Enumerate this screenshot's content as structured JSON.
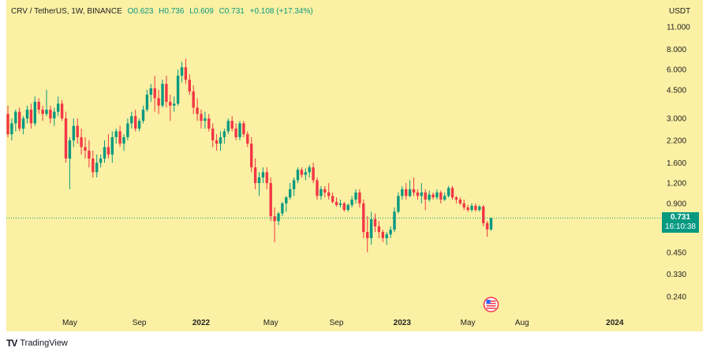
{
  "header": {
    "symbol": "CRV / TetherUS, 1W, BINANCE",
    "open": "O0.623",
    "high": "H0.736",
    "low": "L0.609",
    "close": "C0.731",
    "change": "+0.108 (+17.34%)"
  },
  "currency": "USDT",
  "last_price": {
    "value": "0.731",
    "countdown": "16:10:38"
  },
  "branding": {
    "name": "TradingView",
    "logo": "TV"
  },
  "colors": {
    "up": "#089981",
    "down": "#f23645",
    "background": "#fbf0a3"
  },
  "chart_data": {
    "type": "candlestick",
    "title": "CRV / TetherUS, 1W, BINANCE",
    "yscale": "log",
    "ylim": [
      0.2,
      13.5
    ],
    "ytick_labels": [
      "11.000",
      "8.000",
      "6.000",
      "4.500",
      "3.000",
      "2.200",
      "1.600",
      "1.200",
      "0.900",
      "0.450",
      "0.330",
      "0.240"
    ],
    "yticks": [
      11.0,
      8.0,
      6.0,
      4.5,
      3.0,
      2.2,
      1.6,
      1.2,
      0.9,
      0.45,
      0.33,
      0.24
    ],
    "xtick_labels": [
      "May",
      "Sep",
      "2022",
      "May",
      "Sep",
      "2023",
      "May",
      "Aug",
      "2024"
    ],
    "xtick_index": [
      16,
      34,
      50,
      68,
      85,
      102,
      119,
      133,
      157
    ],
    "bold_xticks": [
      "2022",
      "2023",
      "2024"
    ],
    "candles": [
      [
        3.2,
        3.6,
        2.3,
        2.4
      ],
      [
        2.4,
        3.0,
        2.2,
        2.8
      ],
      [
        2.8,
        3.4,
        2.5,
        3.3
      ],
      [
        3.3,
        3.5,
        2.5,
        2.6
      ],
      [
        2.6,
        3.1,
        2.4,
        3.0
      ],
      [
        3.0,
        3.6,
        2.8,
        3.4
      ],
      [
        3.4,
        3.7,
        2.6,
        2.8
      ],
      [
        2.8,
        4.1,
        2.7,
        3.8
      ],
      [
        3.8,
        4.0,
        3.2,
        3.4
      ],
      [
        3.4,
        3.6,
        2.9,
        3.2
      ],
      [
        3.2,
        4.5,
        3.1,
        3.4
      ],
      [
        3.4,
        3.6,
        2.8,
        3.0
      ],
      [
        3.0,
        3.5,
        2.7,
        3.3
      ],
      [
        3.3,
        4.1,
        3.1,
        3.7
      ],
      [
        3.7,
        3.9,
        2.9,
        3.0
      ],
      [
        3.0,
        3.3,
        1.6,
        1.7
      ],
      [
        1.7,
        2.3,
        1.1,
        2.2
      ],
      [
        2.2,
        3.0,
        2.0,
        2.7
      ],
      [
        2.7,
        3.0,
        2.1,
        2.3
      ],
      [
        2.3,
        2.6,
        1.8,
        2.0
      ],
      [
        2.0,
        2.3,
        1.7,
        1.9
      ],
      [
        1.9,
        2.2,
        1.5,
        1.7
      ],
      [
        1.7,
        1.9,
        1.3,
        1.4
      ],
      [
        1.4,
        1.8,
        1.3,
        1.6
      ],
      [
        1.6,
        1.8,
        1.5,
        1.7
      ],
      [
        1.7,
        2.2,
        1.6,
        2.0
      ],
      [
        2.0,
        2.4,
        1.7,
        1.8
      ],
      [
        1.8,
        2.5,
        1.6,
        2.3
      ],
      [
        2.3,
        2.6,
        2.1,
        2.5
      ],
      [
        2.5,
        2.7,
        2.0,
        2.1
      ],
      [
        2.1,
        2.4,
        1.9,
        2.3
      ],
      [
        2.3,
        3.0,
        2.2,
        2.8
      ],
      [
        2.8,
        3.3,
        2.6,
        3.1
      ],
      [
        3.1,
        3.4,
        2.5,
        2.6
      ],
      [
        2.6,
        3.0,
        2.5,
        2.9
      ],
      [
        2.9,
        3.6,
        2.8,
        3.4
      ],
      [
        3.4,
        4.5,
        3.3,
        4.2
      ],
      [
        4.2,
        4.9,
        3.8,
        4.6
      ],
      [
        4.6,
        5.5,
        3.3,
        4.0
      ],
      [
        4.0,
        4.5,
        3.2,
        3.6
      ],
      [
        3.6,
        5.2,
        3.5,
        4.9
      ],
      [
        4.9,
        5.5,
        3.5,
        3.8
      ],
      [
        3.8,
        4.2,
        2.9,
        3.6
      ],
      [
        3.6,
        4.1,
        3.3,
        3.7
      ],
      [
        3.7,
        6.0,
        3.6,
        5.5
      ],
      [
        5.5,
        6.7,
        5.0,
        6.2
      ],
      [
        6.2,
        7.0,
        4.9,
        5.2
      ],
      [
        5.2,
        5.6,
        4.2,
        4.4
      ],
      [
        4.4,
        4.8,
        3.2,
        3.5
      ],
      [
        3.5,
        4.0,
        2.9,
        3.2
      ],
      [
        3.2,
        3.4,
        2.6,
        2.9
      ],
      [
        2.9,
        3.3,
        2.6,
        3.0
      ],
      [
        3.0,
        3.2,
        2.5,
        2.6
      ],
      [
        2.6,
        2.8,
        2.0,
        2.2
      ],
      [
        2.2,
        2.4,
        1.9,
        2.1
      ],
      [
        2.1,
        2.5,
        1.9,
        2.3
      ],
      [
        2.3,
        2.6,
        2.1,
        2.5
      ],
      [
        2.5,
        3.0,
        2.4,
        2.9
      ],
      [
        2.9,
        3.1,
        2.5,
        2.6
      ],
      [
        2.6,
        2.8,
        2.2,
        2.3
      ],
      [
        2.3,
        2.9,
        2.2,
        2.8
      ],
      [
        2.8,
        2.9,
        2.3,
        2.4
      ],
      [
        2.4,
        2.5,
        2.0,
        2.1
      ],
      [
        2.1,
        2.3,
        1.4,
        1.5
      ],
      [
        1.5,
        1.7,
        1.1,
        1.2
      ],
      [
        1.2,
        1.4,
        1.0,
        1.3
      ],
      [
        1.3,
        1.5,
        1.2,
        1.4
      ],
      [
        1.4,
        1.5,
        1.1,
        1.2
      ],
      [
        1.2,
        1.3,
        0.7,
        0.75
      ],
      [
        0.75,
        0.85,
        0.52,
        0.7
      ],
      [
        0.7,
        0.8,
        0.66,
        0.78
      ],
      [
        0.78,
        0.92,
        0.75,
        0.9
      ],
      [
        0.9,
        1.0,
        0.8,
        0.98
      ],
      [
        0.98,
        1.2,
        0.95,
        1.1
      ],
      [
        1.1,
        1.3,
        1.0,
        1.25
      ],
      [
        1.25,
        1.5,
        1.2,
        1.45
      ],
      [
        1.45,
        1.5,
        1.3,
        1.35
      ],
      [
        1.35,
        1.48,
        1.25,
        1.4
      ],
      [
        1.4,
        1.55,
        1.3,
        1.5
      ],
      [
        1.5,
        1.6,
        1.2,
        1.25
      ],
      [
        1.25,
        1.3,
        0.95,
        1.0
      ],
      [
        1.0,
        1.15,
        0.95,
        1.1
      ],
      [
        1.1,
        1.15,
        0.98,
        1.05
      ],
      [
        1.05,
        1.2,
        0.95,
        1.0
      ],
      [
        1.0,
        1.05,
        0.9,
        0.92
      ],
      [
        0.92,
        0.98,
        0.86,
        0.88
      ],
      [
        0.88,
        0.95,
        0.85,
        0.9
      ],
      [
        0.9,
        0.92,
        0.8,
        0.82
      ],
      [
        0.82,
        0.9,
        0.8,
        0.88
      ],
      [
        0.88,
        1.0,
        0.85,
        0.95
      ],
      [
        0.95,
        1.1,
        0.9,
        1.05
      ],
      [
        1.05,
        1.1,
        0.85,
        0.9
      ],
      [
        0.9,
        0.95,
        0.55,
        0.6
      ],
      [
        0.6,
        0.75,
        0.45,
        0.55
      ],
      [
        0.55,
        0.8,
        0.5,
        0.72
      ],
      [
        0.72,
        0.78,
        0.6,
        0.65
      ],
      [
        0.65,
        0.7,
        0.55,
        0.6
      ],
      [
        0.6,
        0.62,
        0.52,
        0.55
      ],
      [
        0.55,
        0.6,
        0.5,
        0.58
      ],
      [
        0.58,
        0.65,
        0.55,
        0.62
      ],
      [
        0.62,
        0.85,
        0.6,
        0.8
      ],
      [
        0.8,
        1.05,
        0.78,
        1.0
      ],
      [
        1.0,
        1.15,
        0.95,
        1.1
      ],
      [
        1.1,
        1.2,
        0.95,
        1.0
      ],
      [
        1.0,
        1.25,
        0.98,
        1.1
      ],
      [
        1.1,
        1.3,
        1.0,
        1.05
      ],
      [
        1.05,
        1.1,
        0.95,
        1.0
      ],
      [
        1.0,
        1.2,
        0.9,
        1.05
      ],
      [
        1.05,
        1.1,
        0.82,
        0.95
      ],
      [
        0.95,
        1.08,
        0.92,
        1.02
      ],
      [
        1.02,
        1.05,
        0.95,
        0.98
      ],
      [
        0.98,
        1.1,
        0.95,
        1.05
      ],
      [
        1.05,
        1.08,
        0.9,
        0.95
      ],
      [
        0.95,
        1.05,
        0.93,
        1.0
      ],
      [
        1.0,
        1.15,
        0.98,
        1.12
      ],
      [
        1.12,
        1.15,
        0.95,
        0.98
      ],
      [
        0.98,
        1.0,
        0.9,
        0.95
      ],
      [
        0.95,
        0.98,
        0.88,
        0.9
      ],
      [
        0.9,
        0.95,
        0.82,
        0.85
      ],
      [
        0.85,
        0.88,
        0.8,
        0.82
      ],
      [
        0.82,
        0.9,
        0.8,
        0.87
      ],
      [
        0.87,
        0.9,
        0.8,
        0.82
      ],
      [
        0.82,
        0.88,
        0.8,
        0.86
      ],
      [
        0.86,
        0.88,
        0.65,
        0.68
      ],
      [
        0.68,
        0.7,
        0.56,
        0.623
      ],
      [
        0.623,
        0.736,
        0.609,
        0.731
      ]
    ]
  }
}
